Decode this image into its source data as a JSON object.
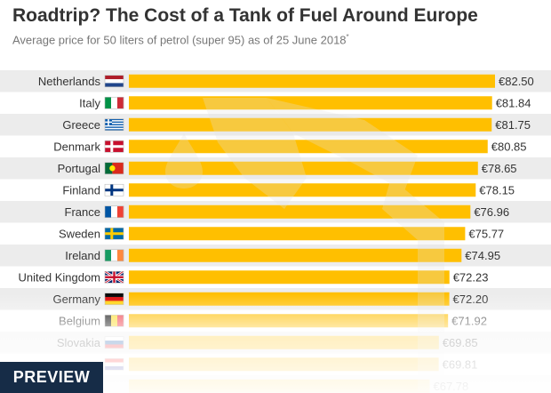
{
  "title": "Roadtrip? The Cost of a Tank of Fuel Around Europe",
  "subtitle": "Average price for 50 liters of petrol (super 95) as of 25 June 2018",
  "subtitle_mark": "*",
  "preview_label": "PREVIEW",
  "colors": {
    "bar": "#ffbf00",
    "stripe": "#ececec",
    "pump": "#e3e3e3",
    "text": "#333333"
  },
  "chart_data": {
    "type": "bar",
    "orientation": "horizontal",
    "title": "Roadtrip? The Cost of a Tank of Fuel Around Europe",
    "subtitle": "Average price for 50 liters of petrol (super 95) as of 25 June 2018",
    "categories": [
      "Netherlands",
      "Italy",
      "Greece",
      "Denmark",
      "Portugal",
      "Finland",
      "France",
      "Sweden",
      "Ireland",
      "United Kingdom",
      "Germany",
      "Belgium",
      "Slovakia",
      "",
      ""
    ],
    "values": [
      82.5,
      81.84,
      81.75,
      80.85,
      78.65,
      78.15,
      76.96,
      75.77,
      74.95,
      72.23,
      72.2,
      71.92,
      69.85,
      69.81,
      67.78
    ],
    "value_labels": [
      "€82.50",
      "€81.84",
      "€81.75",
      "€80.85",
      "€78.65",
      "€78.15",
      "€76.96",
      "€75.77",
      "€74.95",
      "€72.23",
      "€72.20",
      "€71.92",
      "€69.85",
      "€69.81",
      "€67.78"
    ],
    "flags": [
      "netherlands",
      "italy",
      "greece",
      "denmark",
      "portugal",
      "finland",
      "france",
      "sweden",
      "ireland",
      "united-kingdom",
      "germany",
      "belgium",
      "slovakia",
      "croatia",
      ""
    ],
    "xlim": [
      0,
      85
    ],
    "grid": false,
    "legend": "none"
  }
}
